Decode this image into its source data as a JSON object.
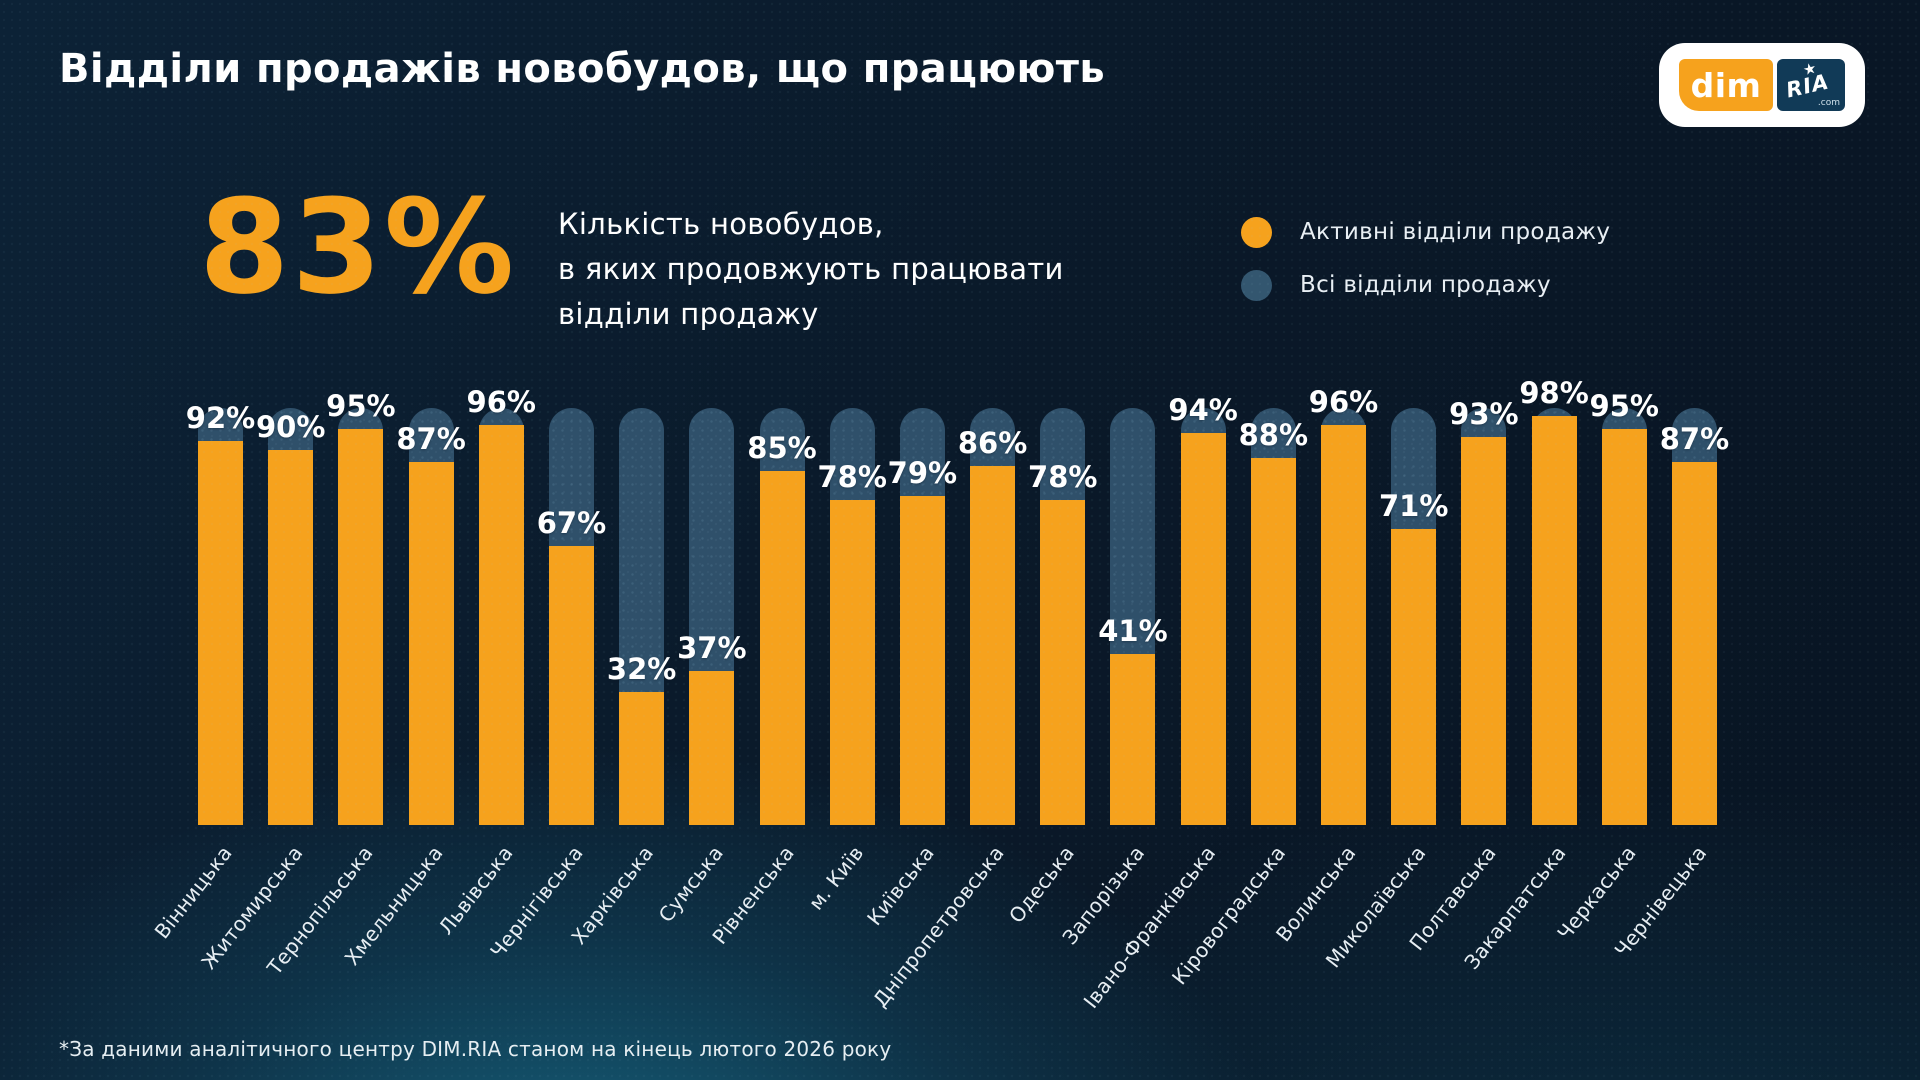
{
  "header": {
    "title": "Відділи продажів новобудов, що працюють",
    "logo": {
      "dim": "dim",
      "ria": "RIA",
      "com": ".com",
      "star": "★"
    }
  },
  "summary": {
    "big_percent": "83%",
    "description": "Кількість новобудов,\nв яких продовжують працювати\nвідділи продажу"
  },
  "legend": {
    "items": [
      {
        "label": "Активні відділи продажу",
        "color": "#f6a21d"
      },
      {
        "label": "Всі відділи продажу",
        "color": "#33566f"
      }
    ]
  },
  "chart_data": {
    "type": "bar",
    "title": "Відділи продажів новобудов, що працюють",
    "categories": [
      "Вінницька",
      "Житомирська",
      "Тернопільська",
      "Хмельницька",
      "Львівська",
      "Чернігівська",
      "Харківська",
      "Сумська",
      "Рівненська",
      "м. Київ",
      "Київська",
      "Дніпропетровська",
      "Одеська",
      "Запорізька",
      "Івано-Франківська",
      "Кіровоградська",
      "Волинська",
      "Миколаївська",
      "Полтавська",
      "Закарпатська",
      "Черкаська",
      "Чернівецька"
    ],
    "series": [
      {
        "name": "Активні відділи продажу",
        "color": "#f6a21d",
        "values": [
          92,
          90,
          95,
          87,
          96,
          67,
          32,
          37,
          85,
          78,
          79,
          86,
          78,
          41,
          94,
          88,
          96,
          71,
          93,
          98,
          95,
          87
        ]
      },
      {
        "name": "Всі відділи продажу",
        "color": "#2f506a",
        "values": [
          100,
          100,
          100,
          100,
          100,
          100,
          100,
          100,
          100,
          100,
          100,
          100,
          100,
          100,
          100,
          100,
          100,
          100,
          100,
          100,
          100,
          100
        ]
      }
    ],
    "value_label_suffix": "%",
    "ylim": [
      0,
      100
    ],
    "grid": false,
    "legend_position": "top-right"
  },
  "footer": {
    "note": "*За даними аналітичного центру DIM.RIA станом на кінець лютого 2026 року"
  },
  "colors": {
    "accent": "#f6a21d",
    "bar_background": "#2f506a",
    "background_top": "#0c2236",
    "background_glow": "#15657f",
    "text": "#ffffff"
  }
}
